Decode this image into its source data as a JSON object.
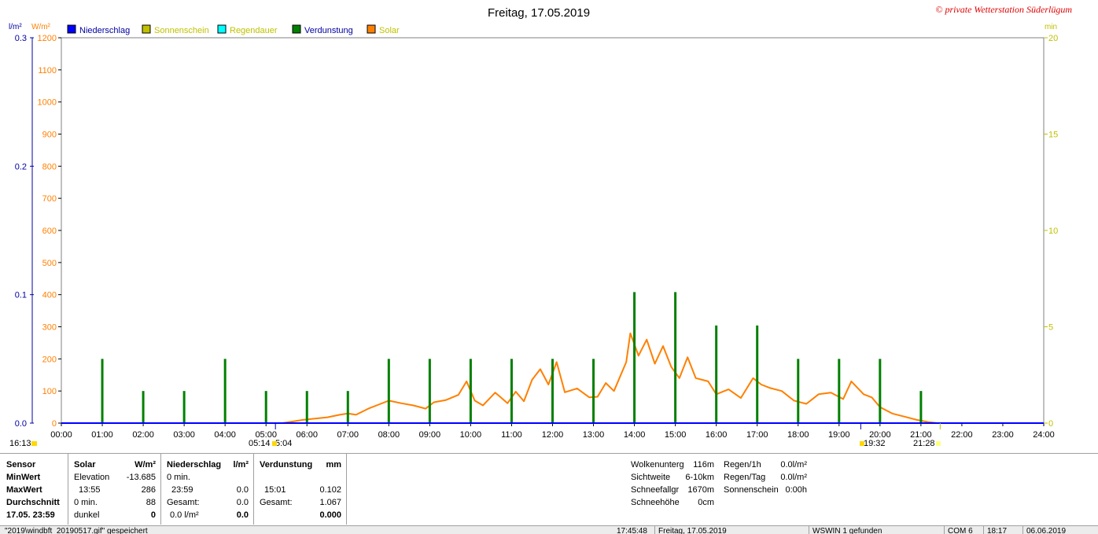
{
  "title": "Freitag, 17.05.2019",
  "watermark": "© private Wetterstation Süderlügum",
  "axis_unit_left_1": "l/m²",
  "axis_unit_left_2": "W/m²",
  "axis_unit_right": "min",
  "legend": [
    {
      "label": "Niederschlag",
      "color": "#0000ff",
      "text_color": "#0000a0"
    },
    {
      "label": "Sonnenschein",
      "color": "#c0c000",
      "text_color": "#c0c000"
    },
    {
      "label": "Regendauer",
      "color": "#00ffff",
      "text_color": "#c0c000"
    },
    {
      "label": "Verdunstung",
      "color": "#008000",
      "text_color": "#0000a0"
    },
    {
      "label": "Solar",
      "color": "#ff8000",
      "text_color": "#c0c000"
    }
  ],
  "chart_data": {
    "type": "line",
    "title": "Freitag, 17.05.2019",
    "x_ticks": [
      "00:00",
      "01:00",
      "02:00",
      "03:00",
      "04:00",
      "05:00",
      "06:00",
      "07:00",
      "08:00",
      "09:00",
      "10:00",
      "11:00",
      "12:00",
      "13:00",
      "14:00",
      "15:00",
      "16:00",
      "17:00",
      "18:00",
      "19:00",
      "20:00",
      "21:00",
      "22:00",
      "23:00",
      "24:00"
    ],
    "xlim": [
      0,
      24
    ],
    "y_left_precip_ticks": [
      "0.0",
      "0.1",
      "0.2",
      "0.3"
    ],
    "y_left_precip_lim": [
      0,
      0.3
    ],
    "y_left_solar_ticks": [
      "0",
      "100",
      "200",
      "300",
      "400",
      "500",
      "600",
      "700",
      "800",
      "900",
      "1000",
      "1100",
      "1200"
    ],
    "y_left_solar_lim": [
      0,
      1200
    ],
    "y_right_ticks": [
      "0",
      "5",
      "10",
      "15",
      "20"
    ],
    "y_right_lim": [
      0,
      20
    ],
    "grid": true,
    "series": [
      {
        "name": "Solar",
        "color": "#ff8000",
        "axis": "solar",
        "points": [
          [
            5.4,
            0
          ],
          [
            5.6,
            4
          ],
          [
            5.9,
            10
          ],
          [
            6.2,
            14
          ],
          [
            6.5,
            18
          ],
          [
            6.8,
            26
          ],
          [
            7.0,
            30
          ],
          [
            7.2,
            26
          ],
          [
            7.5,
            45
          ],
          [
            7.8,
            60
          ],
          [
            8.0,
            70
          ],
          [
            8.3,
            62
          ],
          [
            8.6,
            55
          ],
          [
            8.9,
            45
          ],
          [
            9.1,
            65
          ],
          [
            9.4,
            72
          ],
          [
            9.7,
            88
          ],
          [
            9.9,
            130
          ],
          [
            10.1,
            70
          ],
          [
            10.3,
            55
          ],
          [
            10.6,
            95
          ],
          [
            10.9,
            62
          ],
          [
            11.1,
            98
          ],
          [
            11.3,
            68
          ],
          [
            11.5,
            135
          ],
          [
            11.7,
            168
          ],
          [
            11.9,
            120
          ],
          [
            12.1,
            190
          ],
          [
            12.3,
            96
          ],
          [
            12.6,
            108
          ],
          [
            12.9,
            80
          ],
          [
            13.1,
            82
          ],
          [
            13.3,
            125
          ],
          [
            13.5,
            100
          ],
          [
            13.8,
            190
          ],
          [
            13.9,
            280
          ],
          [
            14.1,
            210
          ],
          [
            14.3,
            260
          ],
          [
            14.5,
            185
          ],
          [
            14.7,
            240
          ],
          [
            14.9,
            175
          ],
          [
            15.1,
            140
          ],
          [
            15.3,
            205
          ],
          [
            15.5,
            140
          ],
          [
            15.8,
            130
          ],
          [
            16.0,
            90
          ],
          [
            16.3,
            105
          ],
          [
            16.6,
            78
          ],
          [
            16.9,
            140
          ],
          [
            17.1,
            120
          ],
          [
            17.3,
            110
          ],
          [
            17.6,
            100
          ],
          [
            17.9,
            70
          ],
          [
            18.2,
            60
          ],
          [
            18.5,
            90
          ],
          [
            18.8,
            95
          ],
          [
            19.1,
            75
          ],
          [
            19.3,
            130
          ],
          [
            19.6,
            90
          ],
          [
            19.8,
            80
          ],
          [
            20.0,
            50
          ],
          [
            20.3,
            30
          ],
          [
            20.6,
            20
          ],
          [
            20.9,
            10
          ],
          [
            21.2,
            3
          ],
          [
            21.4,
            0
          ]
        ]
      },
      {
        "name": "Verdunstung",
        "color": "#008000",
        "axis": "precip",
        "points": [
          [
            1.0,
            0.05
          ],
          [
            2.0,
            0.025
          ],
          [
            3.0,
            0.025
          ],
          [
            4.0,
            0.05
          ],
          [
            5.0,
            0.025
          ],
          [
            6.0,
            0.025
          ],
          [
            7.0,
            0.025
          ],
          [
            8.0,
            0.05
          ],
          [
            9.0,
            0.05
          ],
          [
            10.0,
            0.05
          ],
          [
            11.0,
            0.05
          ],
          [
            12.0,
            0.05
          ],
          [
            13.0,
            0.05
          ],
          [
            14.0,
            0.102
          ],
          [
            15.0,
            0.102
          ],
          [
            16.0,
            0.076
          ],
          [
            17.0,
            0.076
          ],
          [
            18.0,
            0.05
          ],
          [
            19.0,
            0.05
          ],
          [
            20.0,
            0.05
          ],
          [
            21.0,
            0.025
          ]
        ]
      },
      {
        "name": "Niederschlag",
        "color": "#0000ff",
        "axis": "precip",
        "points": [
          [
            0,
            0
          ],
          [
            24,
            0
          ]
        ]
      }
    ]
  },
  "sun_markers": {
    "left_time": "16:13",
    "sunrise_a": "05:14",
    "sunrise_b": "5:04",
    "sunset_a": "19:32",
    "sunset_b": "21:28"
  },
  "stats": {
    "sensor": {
      "header": "Sensor",
      "rows": [
        "MinWert",
        "MaxWert",
        "Durchschnitt",
        "17.05. 23:59"
      ]
    },
    "solar": {
      "header": "Solar",
      "unit": "W/m²",
      "rows": [
        [
          "Elevation",
          "-13.685"
        ],
        [
          "13:55",
          "286"
        ],
        [
          "0 min.",
          "88"
        ],
        [
          "dunkel",
          "0"
        ]
      ]
    },
    "niederschlag": {
      "header": "Niederschlag",
      "unit": "l/m²",
      "rows": [
        [
          "0 min.",
          ""
        ],
        [
          "23:59",
          "0.0"
        ],
        [
          "Gesamt:",
          "0.0"
        ],
        [
          "0.0 l/m²",
          "0.0"
        ]
      ]
    },
    "verdunstung": {
      "header": "Verdunstung",
      "unit": "mm",
      "rows": [
        [
          "",
          ""
        ],
        [
          "15:01",
          "0.102"
        ],
        [
          "Gesamt:",
          "1.067"
        ],
        [
          "",
          "0.000"
        ]
      ]
    },
    "clouds": [
      [
        "Wolkenunterg",
        "116m"
      ],
      [
        "Sichtweite",
        "6-10km"
      ],
      [
        "Schneefallgr",
        "1670m"
      ],
      [
        "Schneehöhe",
        "0cm"
      ]
    ],
    "rain": [
      [
        "Regen/1h",
        "0.0l/m²"
      ],
      [
        "Regen/Tag",
        "0.0l/m²"
      ],
      [
        "Sonnenschein",
        "0:00h"
      ]
    ]
  },
  "statusbar": [
    "\"2019\\windbft_20190517.gif\" gespeichert",
    "17:45:48",
    "Freitag, 17.05.2019",
    "WSWIN 1 gefunden",
    "COM 6",
    "18:17",
    "06.06.2019"
  ]
}
